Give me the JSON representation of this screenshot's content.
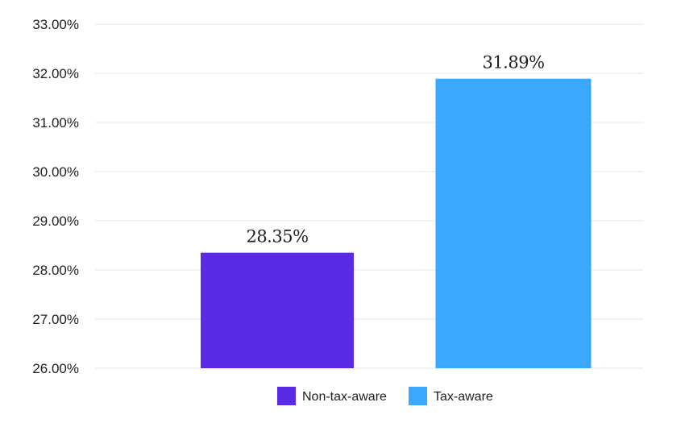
{
  "chart_data": {
    "type": "bar",
    "categories": [
      "Non-tax-aware",
      "Tax-aware"
    ],
    "values": [
      28.35,
      31.89
    ],
    "data_labels": [
      "28.35%",
      "31.89%"
    ],
    "colors": [
      "#5a2be6",
      "#3aa8ff"
    ],
    "y_ticks": [
      "26.00%",
      "27.00%",
      "28.00%",
      "29.00%",
      "30.00%",
      "31.00%",
      "32.00%",
      "33.00%"
    ],
    "ylim": [
      26,
      33
    ],
    "grid": true,
    "legend": {
      "placement": "bottom-center",
      "items": [
        {
          "label": "Non-tax-aware",
          "color": "#5a2be6"
        },
        {
          "label": "Tax-aware",
          "color": "#3aa8ff"
        }
      ]
    }
  }
}
